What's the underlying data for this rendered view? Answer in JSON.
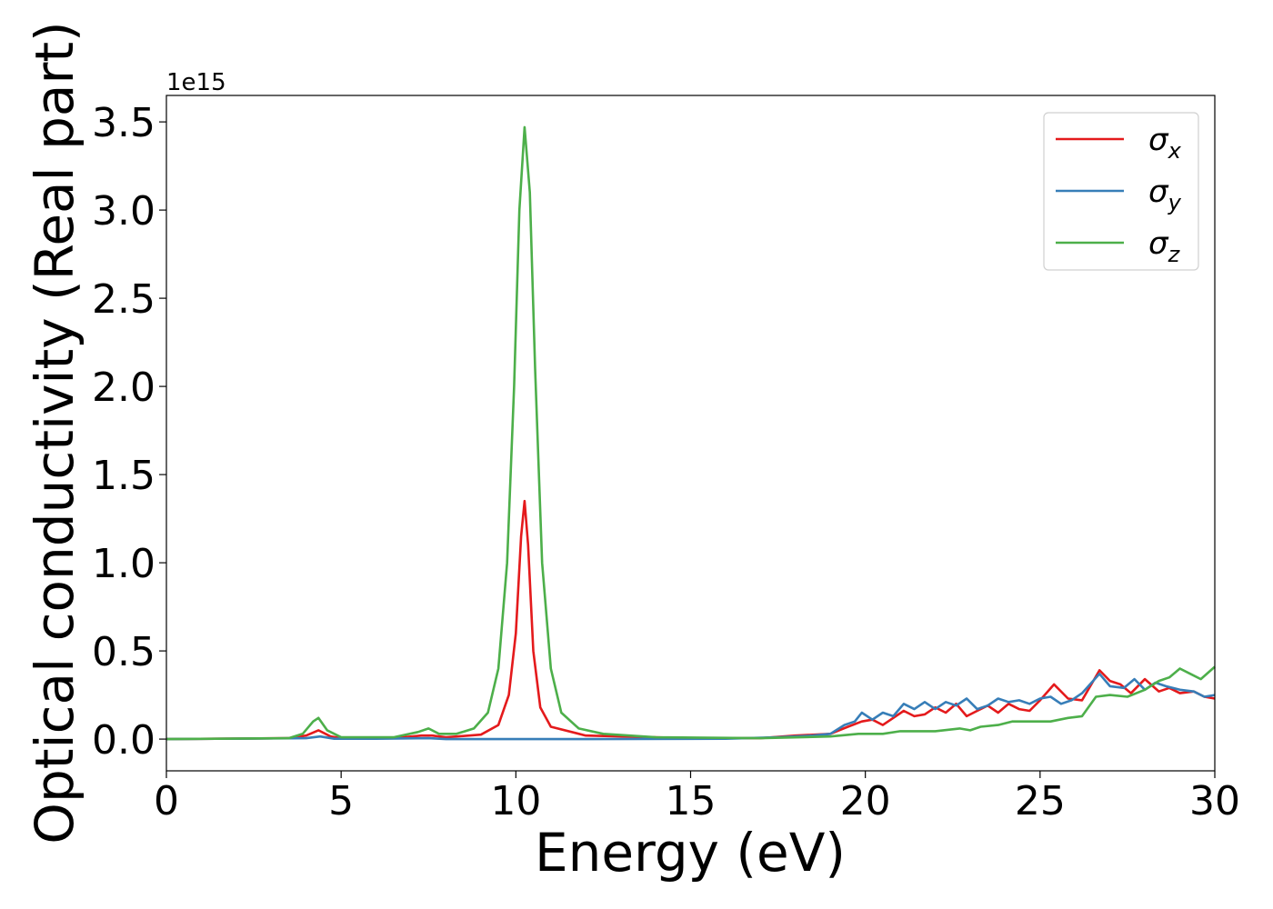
{
  "chart_data": {
    "type": "line",
    "title": "",
    "xlabel": "Energy (eV)",
    "ylabel": "Optical conductivity (Real part)",
    "y_offset_text": "1e15",
    "xlim": [
      0,
      30
    ],
    "ylim": [
      -0.18,
      3.65
    ],
    "x_ticks": [
      0,
      5,
      10,
      15,
      20,
      25,
      30
    ],
    "x_tick_labels": [
      "0",
      "5",
      "10",
      "15",
      "20",
      "25",
      "30"
    ],
    "y_ticks": [
      0.0,
      0.5,
      1.0,
      1.5,
      2.0,
      2.5,
      3.0,
      3.5
    ],
    "y_tick_labels": [
      "0.0",
      "0.5",
      "1.0",
      "1.5",
      "2.0",
      "2.5",
      "3.0",
      "3.5"
    ],
    "grid": false,
    "legend_position": "top-right",
    "series": [
      {
        "name": "σx",
        "symbol": "σ",
        "subscript": "x",
        "color": "#e41a1c",
        "points": [
          [
            0,
            0
          ],
          [
            3.5,
            0.005
          ],
          [
            4.0,
            0.02
          ],
          [
            4.35,
            0.05
          ],
          [
            4.7,
            0.015
          ],
          [
            5.0,
            0.005
          ],
          [
            6.5,
            0.005
          ],
          [
            7.3,
            0.02
          ],
          [
            7.6,
            0.02
          ],
          [
            8.0,
            0.01
          ],
          [
            9.0,
            0.025
          ],
          [
            9.5,
            0.08
          ],
          [
            9.8,
            0.25
          ],
          [
            10.0,
            0.6
          ],
          [
            10.15,
            1.15
          ],
          [
            10.25,
            1.35
          ],
          [
            10.35,
            1.1
          ],
          [
            10.5,
            0.5
          ],
          [
            10.7,
            0.18
          ],
          [
            11.0,
            0.07
          ],
          [
            12.0,
            0.02
          ],
          [
            15.0,
            0.005
          ],
          [
            17.0,
            0.005
          ],
          [
            18.0,
            0.02
          ],
          [
            19.0,
            0.03
          ],
          [
            19.5,
            0.07
          ],
          [
            19.9,
            0.1
          ],
          [
            20.2,
            0.11
          ],
          [
            20.5,
            0.08
          ],
          [
            20.8,
            0.12
          ],
          [
            21.1,
            0.16
          ],
          [
            21.4,
            0.13
          ],
          [
            21.7,
            0.14
          ],
          [
            22.0,
            0.18
          ],
          [
            22.3,
            0.15
          ],
          [
            22.6,
            0.2
          ],
          [
            22.9,
            0.13
          ],
          [
            23.2,
            0.16
          ],
          [
            23.5,
            0.19
          ],
          [
            23.8,
            0.15
          ],
          [
            24.1,
            0.2
          ],
          [
            24.4,
            0.17
          ],
          [
            24.7,
            0.16
          ],
          [
            25.0,
            0.22
          ],
          [
            25.4,
            0.31
          ],
          [
            25.8,
            0.23
          ],
          [
            26.2,
            0.22
          ],
          [
            26.7,
            0.39
          ],
          [
            27.0,
            0.33
          ],
          [
            27.3,
            0.31
          ],
          [
            27.6,
            0.26
          ],
          [
            28.0,
            0.34
          ],
          [
            28.4,
            0.27
          ],
          [
            28.7,
            0.29
          ],
          [
            29.0,
            0.26
          ],
          [
            29.4,
            0.27
          ],
          [
            29.7,
            0.24
          ],
          [
            30.0,
            0.23
          ]
        ]
      },
      {
        "name": "σy",
        "symbol": "σ",
        "subscript": "y",
        "color": "#377eb8",
        "points": [
          [
            0,
            0
          ],
          [
            4.0,
            0.005
          ],
          [
            4.4,
            0.015
          ],
          [
            4.8,
            0.002
          ],
          [
            6.0,
            0.002
          ],
          [
            7.5,
            0.005
          ],
          [
            8.0,
            0.0
          ],
          [
            12.0,
            0.0
          ],
          [
            16.0,
            0.002
          ],
          [
            17.5,
            0.01
          ],
          [
            18.5,
            0.02
          ],
          [
            19.0,
            0.03
          ],
          [
            19.4,
            0.08
          ],
          [
            19.7,
            0.1
          ],
          [
            19.9,
            0.15
          ],
          [
            20.2,
            0.11
          ],
          [
            20.5,
            0.15
          ],
          [
            20.8,
            0.13
          ],
          [
            21.1,
            0.2
          ],
          [
            21.4,
            0.17
          ],
          [
            21.7,
            0.21
          ],
          [
            22.0,
            0.17
          ],
          [
            22.3,
            0.21
          ],
          [
            22.6,
            0.19
          ],
          [
            22.9,
            0.23
          ],
          [
            23.2,
            0.17
          ],
          [
            23.5,
            0.19
          ],
          [
            23.8,
            0.23
          ],
          [
            24.1,
            0.21
          ],
          [
            24.4,
            0.22
          ],
          [
            24.7,
            0.2
          ],
          [
            25.0,
            0.23
          ],
          [
            25.3,
            0.24
          ],
          [
            25.6,
            0.2
          ],
          [
            25.9,
            0.22
          ],
          [
            26.2,
            0.26
          ],
          [
            26.7,
            0.37
          ],
          [
            27.0,
            0.3
          ],
          [
            27.4,
            0.29
          ],
          [
            27.7,
            0.34
          ],
          [
            28.0,
            0.28
          ],
          [
            28.3,
            0.32
          ],
          [
            28.6,
            0.3
          ],
          [
            29.0,
            0.28
          ],
          [
            29.4,
            0.27
          ],
          [
            29.7,
            0.24
          ],
          [
            30.0,
            0.25
          ]
        ]
      },
      {
        "name": "σz",
        "symbol": "σ",
        "subscript": "z",
        "color": "#4daf4a",
        "points": [
          [
            0,
            0
          ],
          [
            3.5,
            0.005
          ],
          [
            3.9,
            0.03
          ],
          [
            4.2,
            0.1
          ],
          [
            4.35,
            0.12
          ],
          [
            4.6,
            0.05
          ],
          [
            5.0,
            0.01
          ],
          [
            6.5,
            0.01
          ],
          [
            7.2,
            0.04
          ],
          [
            7.5,
            0.06
          ],
          [
            7.8,
            0.03
          ],
          [
            8.3,
            0.03
          ],
          [
            8.8,
            0.06
          ],
          [
            9.2,
            0.15
          ],
          [
            9.5,
            0.4
          ],
          [
            9.75,
            1.0
          ],
          [
            9.95,
            2.0
          ],
          [
            10.1,
            3.0
          ],
          [
            10.25,
            3.47
          ],
          [
            10.4,
            3.1
          ],
          [
            10.55,
            2.1
          ],
          [
            10.75,
            1.0
          ],
          [
            11.0,
            0.4
          ],
          [
            11.3,
            0.15
          ],
          [
            11.8,
            0.06
          ],
          [
            12.5,
            0.03
          ],
          [
            14.0,
            0.01
          ],
          [
            17.0,
            0.005
          ],
          [
            19.0,
            0.015
          ],
          [
            19.8,
            0.03
          ],
          [
            20.5,
            0.03
          ],
          [
            21.0,
            0.045
          ],
          [
            22.0,
            0.045
          ],
          [
            22.7,
            0.06
          ],
          [
            23.0,
            0.05
          ],
          [
            23.3,
            0.07
          ],
          [
            23.8,
            0.08
          ],
          [
            24.2,
            0.1
          ],
          [
            24.8,
            0.1
          ],
          [
            25.3,
            0.1
          ],
          [
            25.8,
            0.12
          ],
          [
            26.2,
            0.13
          ],
          [
            26.6,
            0.24
          ],
          [
            27.0,
            0.25
          ],
          [
            27.5,
            0.24
          ],
          [
            28.0,
            0.28
          ],
          [
            28.4,
            0.33
          ],
          [
            28.7,
            0.35
          ],
          [
            29.0,
            0.4
          ],
          [
            29.3,
            0.37
          ],
          [
            29.6,
            0.34
          ],
          [
            30.0,
            0.41
          ]
        ]
      }
    ]
  }
}
